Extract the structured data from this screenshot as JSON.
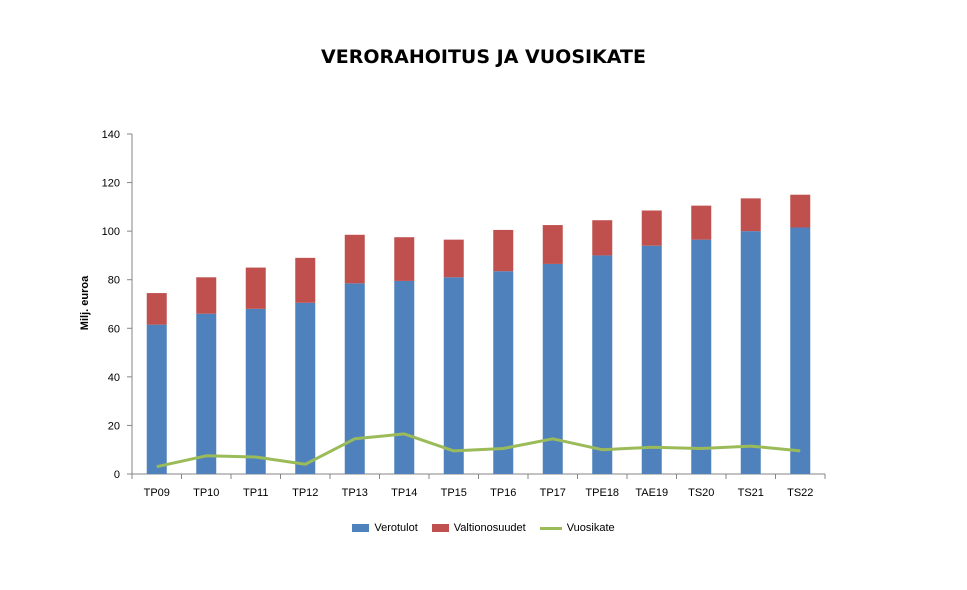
{
  "chart_data": {
    "type": "bar",
    "stacked": true,
    "title": "VERORAHOITUS JA VUOSIKATE",
    "ylabel": "Milj. euroa",
    "xlabel": "",
    "ylim": [
      0,
      140
    ],
    "yticks": [
      0,
      20,
      40,
      60,
      80,
      100,
      120,
      140
    ],
    "grid": false,
    "legend": "bottom",
    "categories": [
      "TP09",
      "TP10",
      "TP11",
      "TP12",
      "TP13",
      "TP14",
      "TP15",
      "TP16",
      "TP17",
      "TPE18",
      "TAE19",
      "TS20",
      "TS21",
      "TS22"
    ],
    "series": [
      {
        "name": "Verotulot",
        "kind": "bar",
        "color": "#4F81BD",
        "values": [
          61.5,
          66,
          68,
          70.5,
          78.5,
          79.5,
          81,
          83.5,
          86.5,
          90,
          94,
          96.5,
          100,
          101.5
        ]
      },
      {
        "name": "Valtionosuudet",
        "kind": "bar",
        "color": "#C0504D",
        "values": [
          13,
          15,
          17,
          18.5,
          20,
          18,
          15.5,
          17,
          16,
          14.5,
          14.5,
          14,
          13.5,
          13.5
        ]
      },
      {
        "name": "Vuosikate",
        "kind": "line",
        "color": "#9BBB59",
        "values": [
          3,
          7.5,
          7,
          4,
          14.5,
          16.5,
          9.5,
          10.5,
          14.5,
          10,
          11,
          10.5,
          11.5,
          9.5
        ]
      }
    ]
  }
}
